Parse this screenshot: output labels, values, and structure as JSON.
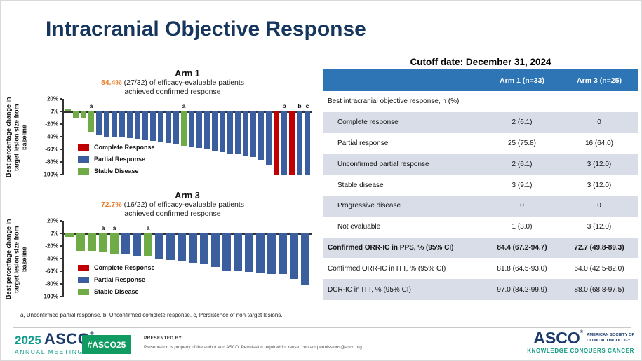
{
  "title": "Intracranial Objective Response",
  "colors": {
    "title_navy": "#17365D",
    "accent_orange": "#E97E2E",
    "table_header": "#2E75B6",
    "row_alt": "#D9DDE8",
    "bar_red": "#C00000",
    "bar_blue": "#3B5F9E",
    "bar_green": "#6FAC47",
    "teal": "#0E9C8D",
    "badge_green": "#0F9B62",
    "navy": "#1B3A6B"
  },
  "chart_data": [
    {
      "type": "bar",
      "title": "Arm 1",
      "highlight": "84.4%",
      "subtitle": " (27/32) of efficacy-evaluable patients",
      "subtitle_line2": "achieved confirmed response",
      "ylabel": "Best percentage change in target lesion size from baseline",
      "ylim": [
        -100,
        20
      ],
      "yticks": [
        20,
        0,
        -20,
        -40,
        -60,
        -80,
        -100
      ],
      "grid": false,
      "legend": [
        "Complete Response",
        "Partial Response",
        "Stable Disease"
      ],
      "legend_position": "inside-left",
      "bars": [
        {
          "value": 4,
          "color": "green"
        },
        {
          "value": -10,
          "color": "green"
        },
        {
          "value": -10,
          "color": "green"
        },
        {
          "value": -33,
          "color": "green",
          "note": "a"
        },
        {
          "value": -38,
          "color": "blue"
        },
        {
          "value": -40,
          "color": "blue"
        },
        {
          "value": -41,
          "color": "blue"
        },
        {
          "value": -41,
          "color": "blue"
        },
        {
          "value": -42,
          "color": "blue"
        },
        {
          "value": -43,
          "color": "blue"
        },
        {
          "value": -45,
          "color": "blue"
        },
        {
          "value": -47,
          "color": "blue"
        },
        {
          "value": -48,
          "color": "blue"
        },
        {
          "value": -50,
          "color": "blue"
        },
        {
          "value": -52,
          "color": "blue"
        },
        {
          "value": -54,
          "color": "green",
          "note": "a"
        },
        {
          "value": -56,
          "color": "blue"
        },
        {
          "value": -58,
          "color": "blue"
        },
        {
          "value": -60,
          "color": "blue"
        },
        {
          "value": -62,
          "color": "blue"
        },
        {
          "value": -64,
          "color": "blue"
        },
        {
          "value": -67,
          "color": "blue"
        },
        {
          "value": -68,
          "color": "blue"
        },
        {
          "value": -70,
          "color": "blue"
        },
        {
          "value": -72,
          "color": "blue"
        },
        {
          "value": -77,
          "color": "blue"
        },
        {
          "value": -86,
          "color": "blue"
        },
        {
          "value": -100,
          "color": "red"
        },
        {
          "value": -100,
          "color": "blue",
          "note": "b"
        },
        {
          "value": -100,
          "color": "red"
        },
        {
          "value": -100,
          "color": "blue",
          "note": "b"
        },
        {
          "value": -100,
          "color": "blue",
          "note": "c"
        }
      ]
    },
    {
      "type": "bar",
      "title": "Arm 3",
      "highlight": "72.7%",
      "subtitle": " (16/22) of efficacy-evaluable patients",
      "subtitle_line2": "achieved confirmed response",
      "ylabel": "Best percentage change in target lesion size from baseline",
      "ylim": [
        -100,
        20
      ],
      "yticks": [
        20,
        0,
        -20,
        -40,
        -60,
        -80,
        -100
      ],
      "grid": false,
      "legend": [
        "Complete Response",
        "Partial Response",
        "Stable Disease"
      ],
      "legend_position": "inside-left",
      "bars": [
        {
          "value": -6,
          "color": "green"
        },
        {
          "value": -28,
          "color": "green"
        },
        {
          "value": -28,
          "color": "green"
        },
        {
          "value": -30,
          "color": "green",
          "note": "a"
        },
        {
          "value": -32,
          "color": "green",
          "note": "a"
        },
        {
          "value": -33,
          "color": "blue"
        },
        {
          "value": -35,
          "color": "blue"
        },
        {
          "value": -36,
          "color": "green",
          "note": "a"
        },
        {
          "value": -41,
          "color": "blue"
        },
        {
          "value": -42,
          "color": "blue"
        },
        {
          "value": -44,
          "color": "blue"
        },
        {
          "value": -47,
          "color": "blue"
        },
        {
          "value": -48,
          "color": "blue"
        },
        {
          "value": -53,
          "color": "blue"
        },
        {
          "value": -59,
          "color": "blue"
        },
        {
          "value": -60,
          "color": "blue"
        },
        {
          "value": -61,
          "color": "blue"
        },
        {
          "value": -63,
          "color": "blue"
        },
        {
          "value": -64,
          "color": "blue"
        },
        {
          "value": -64,
          "color": "blue"
        },
        {
          "value": -72,
          "color": "blue"
        },
        {
          "value": -82,
          "color": "blue"
        }
      ]
    }
  ],
  "charts_footnote": "a, Unconfirmed partial response. b, Unconfirmed complete response. c, Persistence of non-target lesions.",
  "table": {
    "cutoff_label": "Cutoff date: December 31, 2024",
    "columns": [
      "Arm 1 (n=33)",
      "Arm 3 (n=25)"
    ],
    "rows": [
      {
        "label": "Best intracranial objective response, n (%)",
        "arm1": "",
        "arm3": "",
        "style": "section"
      },
      {
        "label": "Complete response",
        "arm1": "2 (6.1)",
        "arm3": "0",
        "style": "sub"
      },
      {
        "label": "Partial response",
        "arm1": "25 (75.8)",
        "arm3": "16 (64.0)",
        "style": "sub"
      },
      {
        "label": "Unconfirmed partial response",
        "arm1": "2 (6.1)",
        "arm3": "3 (12.0)",
        "style": "sub"
      },
      {
        "label": "Stable disease",
        "arm1": "3 (9.1)",
        "arm3": "3 (12.0)",
        "style": "sub"
      },
      {
        "label": "Progressive disease",
        "arm1": "0",
        "arm3": "0",
        "style": "sub"
      },
      {
        "label": "Not evaluable",
        "arm1": "1 (3.0)",
        "arm3": "3 (12.0)",
        "style": "sub"
      },
      {
        "label": "Confirmed ORR-IC in PPS, % (95% CI)",
        "arm1": "84.4 (67.2-94.7)",
        "arm3": "72.7 (49.8-89.3)",
        "style": "stat-bold"
      },
      {
        "label": "Confirmed ORR-IC in ITT, % (95% CI)",
        "arm1": "81.8 (64.5-93.0)",
        "arm3": "64.0 (42.5-82.0)",
        "style": "stat"
      },
      {
        "label": "DCR-IC in ITT, % (95% CI)",
        "arm1": "97.0 (84.2-99.9)",
        "arm3": "88.0 (68.8-97.5)",
        "style": "stat"
      }
    ]
  },
  "footer": {
    "meeting_year": "2025",
    "meeting_name": "ASCO",
    "reg": "®",
    "meeting_sub": "ANNUAL MEETING",
    "hashtag": "#ASCO25",
    "presented_by": "PRESENTED BY:",
    "disclaimer": "Presentation is property of the author and ASCO. Permission required for reuse; contact permissions@asco.org.",
    "asco_name": "ASCO",
    "society_line1": "AMERICAN SOCIETY OF",
    "society_line2": "CLINICAL ONCOLOGY",
    "tagline": "KNOWLEDGE CONQUERS CANCER"
  }
}
